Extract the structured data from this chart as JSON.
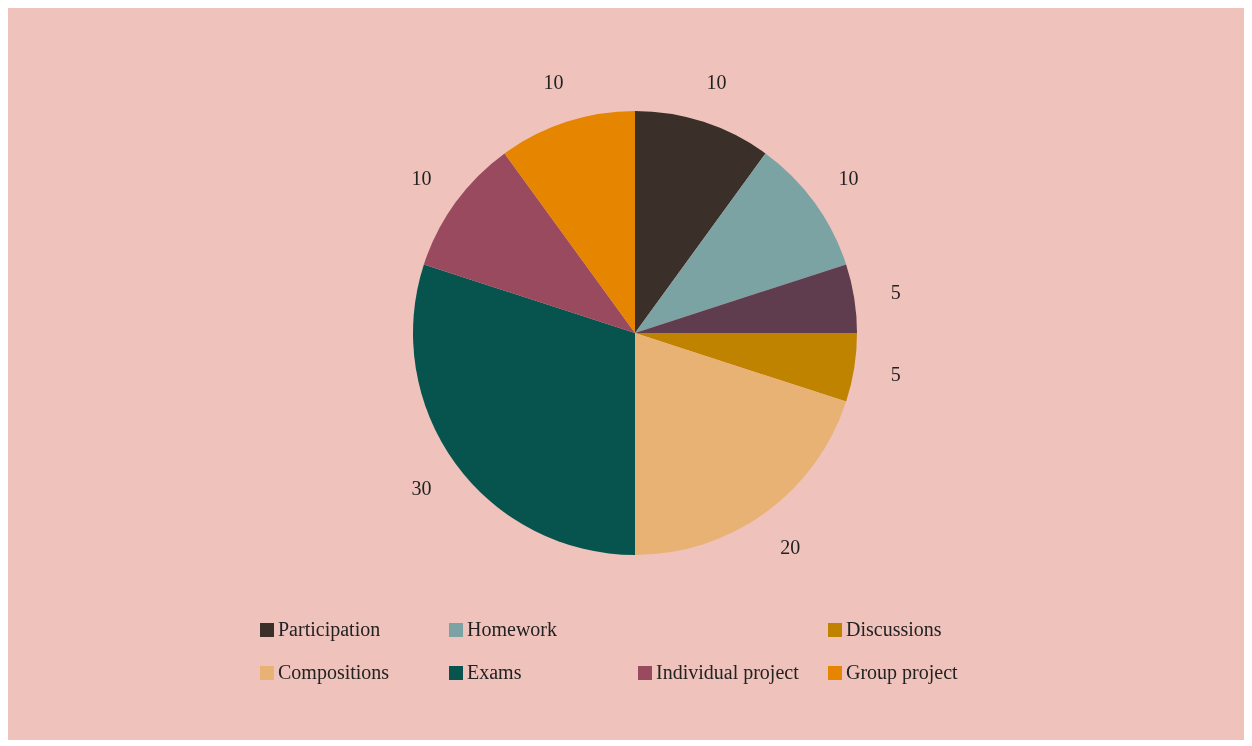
{
  "chart_data": {
    "type": "pie",
    "categories": [
      "Participation",
      "Homework",
      null,
      "Discussions",
      "Compositions",
      "Exams",
      "Individual project",
      "Group project"
    ],
    "values": [
      10,
      10,
      5,
      5,
      20,
      30,
      10,
      10
    ],
    "colors": [
      "#3b3029",
      "#7ba3a3",
      "#5f3d4f",
      "#c08300",
      "#e8b275",
      "#06544d",
      "#9a4a5e",
      "#e68500"
    ],
    "data_labels": true,
    "legend": "bottom"
  }
}
